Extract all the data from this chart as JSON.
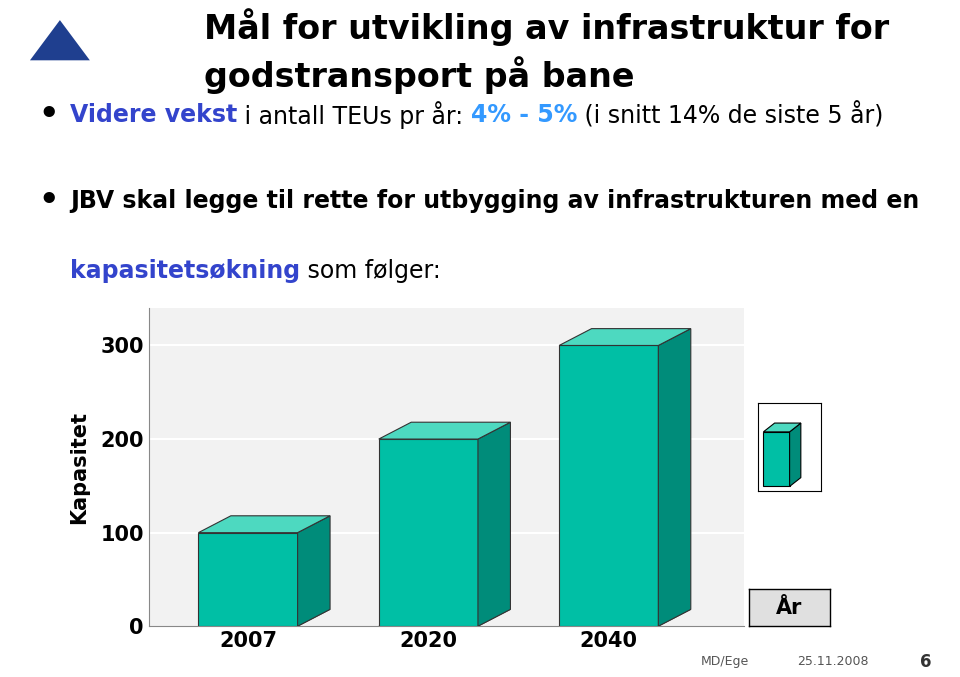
{
  "title_line1": "Mål for utvikling av infrastruktur for",
  "title_line2": "godstransport på bane",
  "bullet1_blue": "Videre vekst",
  "bullet1_black": " i antall TEUs pr år: ",
  "bullet1_colored": "4% - 5%",
  "bullet1_rest": " (i snitt 14% de siste 5 år)",
  "bullet2_black1": "JBV skal legge til rette for utbygging av infrastrukturen med en",
  "bullet2_blue": "kapasitetsøkning",
  "bullet2_rest": " som følger:",
  "bar_categories": [
    "2007",
    "2020",
    "2040"
  ],
  "bar_values": [
    100,
    200,
    300
  ],
  "bar_color_face": "#00BFA5",
  "bar_color_top": "#4DD9C0",
  "bar_color_side": "#008C7A",
  "bar_color_floor": "#B0B0B0",
  "ylabel": "Kapasitet",
  "xlabel": "År",
  "yticks": [
    0,
    100,
    200,
    300
  ],
  "bg_color": "#FFFFFF",
  "header_bg": "#1F3F8F",
  "blue_text": "#3344CC",
  "colored_text": "#3399FF",
  "footer_left": "MD/Ege",
  "footer_date": "25.11.2008",
  "footer_page": "6",
  "title_fontsize": 24,
  "bullet_fontsize": 17,
  "chart_bg": "#F2F2F2",
  "grid_color": "#FFFFFF",
  "axis_label_fontsize": 15,
  "tick_fontsize": 15
}
